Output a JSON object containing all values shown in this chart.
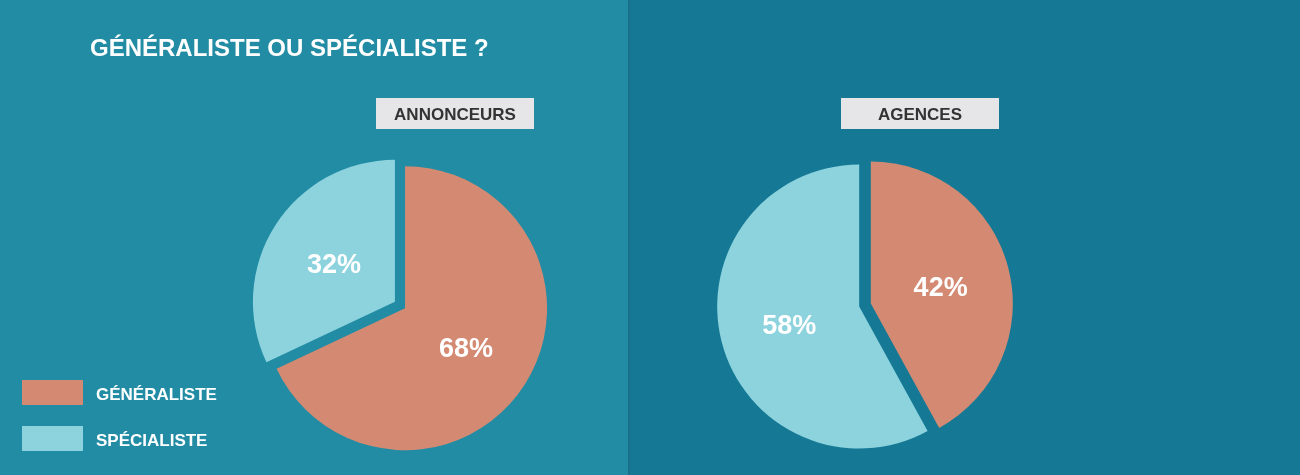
{
  "chart_data": [
    {
      "type": "pie",
      "title": "GÉNÉRALISTE OU SPÉCIALISTE ?",
      "subtitle": "ANNONCEURS",
      "categories": [
        "GÉNÉRALISTE",
        "SPÉCIALISTE"
      ],
      "values": [
        68,
        32
      ],
      "value_labels": [
        "68%",
        "32%"
      ],
      "colors": [
        "#d48a72",
        "#8dd3de"
      ],
      "legend": "bottom left"
    },
    {
      "type": "pie",
      "subtitle": "AGENCES",
      "categories": [
        null,
        null
      ],
      "values": [
        42,
        58
      ],
      "value_labels": [
        "42%",
        "58%"
      ],
      "colors": [
        "#d48a72",
        "#8dd3de"
      ]
    }
  ]
}
